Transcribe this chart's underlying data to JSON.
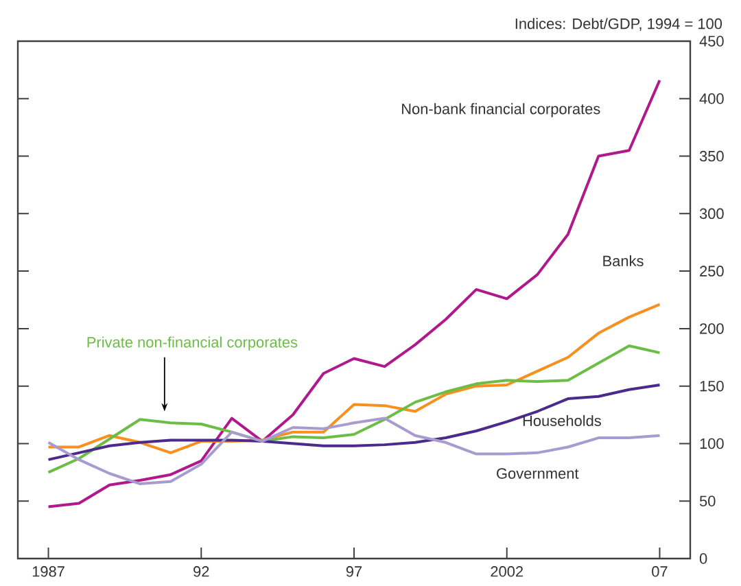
{
  "chart_data": {
    "type": "line",
    "ylabel": "Indices: Debt/GDP, 1994 = 100",
    "x": [
      1987,
      1988,
      1989,
      1990,
      1991,
      1992,
      1993,
      1994,
      1995,
      1996,
      1997,
      1998,
      1999,
      2000,
      2001,
      2002,
      2003,
      2004,
      2005,
      2006,
      2007
    ],
    "xlim": [
      1986,
      2008
    ],
    "xticks": [
      1987,
      {
        "value": 1992,
        "label": "92"
      },
      {
        "value": 1997,
        "label": "97"
      },
      2002,
      {
        "value": 2007,
        "label": "07"
      }
    ],
    "ylim": [
      0,
      450
    ],
    "yticks": [
      0,
      50,
      100,
      150,
      200,
      250,
      300,
      350,
      400,
      450
    ],
    "legend": false,
    "grid": false,
    "marker": "none",
    "line_style": "solid",
    "series": [
      {
        "name": "Non-bank financial corporates",
        "color": "#b0198c",
        "values": [
          45,
          48,
          64,
          68,
          73,
          85,
          122,
          102,
          125,
          161,
          174,
          167,
          186,
          208,
          234,
          226,
          247,
          282,
          350,
          355,
          416
        ]
      },
      {
        "name": "Banks",
        "color": "#f7901e",
        "values": [
          97,
          97,
          107,
          101,
          92,
          102,
          102,
          103,
          110,
          110,
          134,
          133,
          128,
          143,
          150,
          151,
          163,
          175,
          196,
          210,
          221
        ]
      },
      {
        "name": "Private non-financial corporates",
        "color": "#6cbd45",
        "values": [
          75,
          87,
          104,
          121,
          118,
          117,
          110,
          102,
          106,
          105,
          108,
          121,
          136,
          145,
          152,
          155,
          154,
          155,
          170,
          185,
          179
        ]
      },
      {
        "name": "Households",
        "color": "#4b2a8c",
        "values": [
          86,
          92,
          98,
          101,
          103,
          103,
          103,
          102,
          100,
          98,
          98,
          99,
          101,
          105,
          111,
          119,
          128,
          139,
          141,
          147,
          151
        ]
      },
      {
        "name": "Government",
        "color": "#a89bcf",
        "values": [
          101,
          86,
          74,
          65,
          67,
          82,
          110,
          102,
          114,
          113,
          118,
          122,
          107,
          101,
          91,
          91,
          92,
          97,
          105,
          105,
          107
        ]
      }
    ]
  }
}
